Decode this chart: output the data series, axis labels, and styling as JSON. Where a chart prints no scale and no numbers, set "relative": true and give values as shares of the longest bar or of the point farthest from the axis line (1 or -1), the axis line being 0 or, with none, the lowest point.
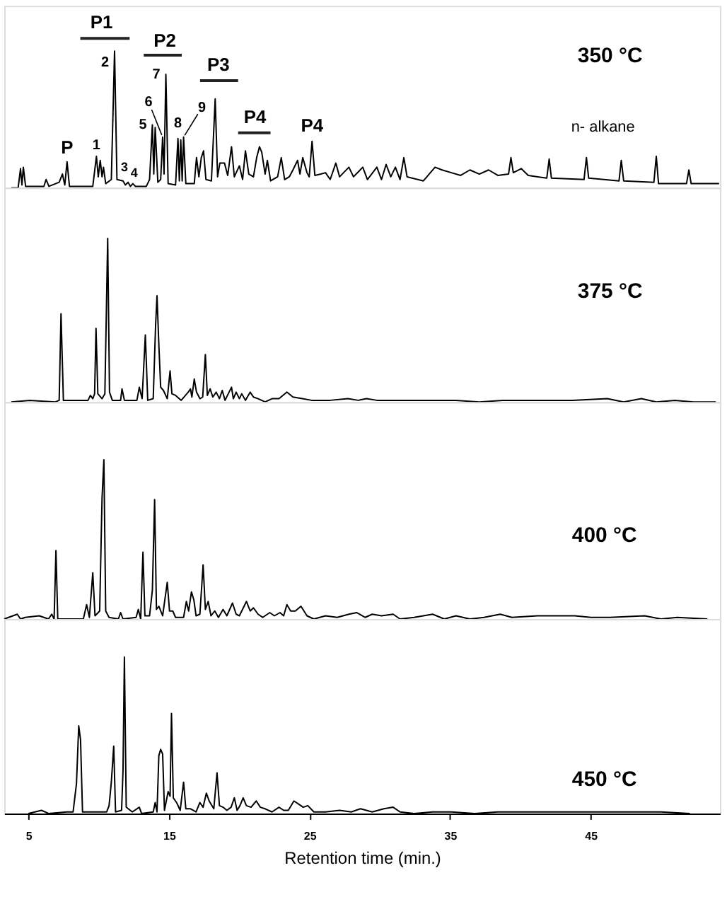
{
  "chart_data": [
    {
      "type": "line",
      "title": "350 °C",
      "relative": true,
      "tick_labels": false,
      "xlim": [
        3.28,
        54.2
      ],
      "x": [
        3.78,
        4.27,
        4.44,
        4.54,
        4.64,
        4.8,
        6.1,
        6.26,
        6.46,
        7.19,
        7.42,
        7.59,
        7.75,
        7.92,
        9.58,
        9.84,
        9.97,
        10.11,
        10.24,
        10.34,
        10.5,
        10.9,
        11.13,
        11.3,
        11.73,
        11.9,
        12.09,
        12.26,
        12.43,
        12.62,
        13.39,
        13.62,
        13.82,
        13.92,
        14.02,
        14.21,
        14.41,
        14.55,
        14.65,
        14.78,
        14.94,
        15.47,
        15.64,
        15.74,
        15.84,
        15.94,
        16.04,
        16.2,
        16.8,
        16.96,
        17.13,
        17.3,
        17.46,
        17.63,
        18.02,
        18.29,
        18.46,
        18.62,
        18.79,
        18.95,
        19.18,
        19.45,
        19.65,
        20.01,
        20.24,
        20.44,
        20.68,
        21.01,
        21.24,
        21.44,
        21.6,
        21.84,
        22.0,
        22.23,
        22.73,
        22.99,
        23.23,
        23.56,
        23.82,
        24.15,
        24.32,
        24.52,
        24.82,
        24.98,
        25.18,
        25.38,
        25.81,
        26.14,
        26.47,
        26.87,
        27.14,
        27.8,
        28.13,
        28.79,
        29.12,
        29.79,
        30.12,
        30.45,
        30.78,
        31.11,
        31.44,
        31.71,
        31.94,
        33.1,
        33.93,
        34.43,
        35.09,
        35.75,
        36.41,
        37.08,
        37.74,
        38.4,
        39.16,
        39.33,
        39.5,
        40.06,
        40.56,
        41.88,
        42.05,
        42.21,
        44.53,
        44.7,
        44.86,
        47.02,
        47.18,
        47.35,
        49.5,
        49.67,
        49.83,
        51.82,
        51.99,
        52.15,
        54.14
      ],
      "series": [
        {
          "color": "#000000",
          "values": [
            0,
            0,
            0.14,
            0.02,
            0.15,
            0.01,
            0.01,
            0.06,
            0.01,
            0.04,
            0.1,
            0.02,
            0.19,
            0.01,
            0.01,
            0.23,
            0.08,
            0.2,
            0.08,
            0.15,
            0.03,
            0.06,
            1.0,
            0.06,
            0.05,
            0.02,
            0.04,
            0.01,
            0.03,
            0.01,
            0.01,
            0.06,
            0.46,
            0.1,
            0.44,
            0.04,
            0.06,
            0.37,
            0.1,
            0.83,
            0.03,
            0.02,
            0.36,
            0.05,
            0.35,
            0.05,
            0.37,
            0.03,
            0.03,
            0.22,
            0.08,
            0.22,
            0.27,
            0.06,
            0.05,
            0.65,
            0.08,
            0.18,
            0.18,
            0.18,
            0.09,
            0.3,
            0.08,
            0.16,
            0.06,
            0.27,
            0.1,
            0.08,
            0.22,
            0.3,
            0.26,
            0.1,
            0.2,
            0.05,
            0.08,
            0.22,
            0.06,
            0.08,
            0.13,
            0.2,
            0.1,
            0.22,
            0.11,
            0.08,
            0.34,
            0.09,
            0.1,
            0.11,
            0.06,
            0.18,
            0.08,
            0.15,
            0.08,
            0.15,
            0.06,
            0.15,
            0.06,
            0.17,
            0.08,
            0.15,
            0.06,
            0.22,
            0.08,
            0.05,
            0.15,
            0.13,
            0.11,
            0.09,
            0.13,
            0.1,
            0.13,
            0.09,
            0.1,
            0.22,
            0.11,
            0.14,
            0.09,
            0.07,
            0.21,
            0.07,
            0.06,
            0.22,
            0.07,
            0.05,
            0.2,
            0.05,
            0.04,
            0.23,
            0.03,
            0.03,
            0.13,
            0.03,
            0.03
          ]
        }
      ],
      "annotations": [
        {
          "text": "P",
          "x": 7.75,
          "y": 0.19
        },
        {
          "text": "1",
          "x": 9.84,
          "y": 0.23
        },
        {
          "text": "2",
          "x": 11.13,
          "y": 1.0
        },
        {
          "text": "3",
          "x": 11.73,
          "y": 0.05
        },
        {
          "text": "4",
          "x": 12.43,
          "y": 0.03
        },
        {
          "text": "5",
          "x": 13.82,
          "y": 0.46
        },
        {
          "text": "6",
          "x": 14.55,
          "y": 0.37
        },
        {
          "text": "7",
          "x": 14.78,
          "y": 0.83
        },
        {
          "text": "8",
          "x": 15.64,
          "y": 0.36
        },
        {
          "text": "9",
          "x": 16.04,
          "y": 0.37
        },
        {
          "text": "P4",
          "x": 25.18,
          "y": 0.34
        },
        "P1",
        "P2",
        "P3",
        "P4",
        "n- alkane"
      ]
    },
    {
      "type": "line",
      "title": "375 °C",
      "relative": true,
      "tick_labels": false,
      "xlim": [
        3.28,
        54.2
      ],
      "x": [
        3.78,
        5.1,
        6.92,
        7.19,
        7.32,
        7.49,
        9.24,
        9.41,
        9.58,
        9.71,
        9.81,
        9.94,
        10.24,
        10.44,
        10.54,
        10.64,
        10.77,
        10.97,
        11.56,
        11.66,
        11.83,
        12.72,
        12.89,
        13.09,
        13.32,
        13.49,
        13.88,
        14.05,
        14.15,
        14.28,
        14.41,
        14.61,
        14.88,
        15.08,
        15.21,
        15.47,
        15.87,
        16.37,
        16.53,
        16.63,
        16.8,
        16.96,
        17.2,
        17.4,
        17.59,
        17.73,
        17.93,
        18.12,
        18.36,
        18.59,
        18.79,
        18.99,
        19.45,
        19.58,
        19.78,
        20.01,
        20.18,
        20.44,
        20.78,
        21.01,
        21.34,
        21.84,
        22.33,
        22.83,
        23.39,
        23.82,
        24.49,
        25.15,
        26.47,
        27.73,
        28.46,
        29.06,
        29.79,
        31.11,
        32.44,
        33.76,
        35.42,
        37.08,
        38.73,
        40.39,
        42.05,
        43.7,
        46.19,
        47.35,
        48.61,
        49.67,
        50.99,
        52.32,
        53.91
      ],
      "series": [
        {
          "color": "#000000",
          "values": [
            0,
            0.01,
            0,
            0.01,
            0.54,
            0.01,
            0.01,
            0.04,
            0.02,
            0.05,
            0.45,
            0.05,
            0.02,
            0.05,
            0.52,
            1.0,
            0.06,
            0.01,
            0.01,
            0.08,
            0.01,
            0.01,
            0.09,
            0.02,
            0.41,
            0.01,
            0.02,
            0.47,
            0.65,
            0.35,
            0.09,
            0.07,
            0.02,
            0.19,
            0.05,
            0.04,
            0.01,
            0.06,
            0.08,
            0.03,
            0.14,
            0.06,
            0.02,
            0.03,
            0.29,
            0.04,
            0.08,
            0.03,
            0.06,
            0.02,
            0.07,
            0.01,
            0.09,
            0.02,
            0.06,
            0.02,
            0.05,
            0.01,
            0.06,
            0.03,
            0.02,
            0,
            0.02,
            0.02,
            0.06,
            0.03,
            0.02,
            0.01,
            0.01,
            0.02,
            0.01,
            0.02,
            0.01,
            0.01,
            0.01,
            0.01,
            0.01,
            0,
            0.01,
            0.01,
            0.01,
            0.01,
            0.02,
            0,
            0.02,
            0,
            0.01,
            0,
            0
          ]
        }
      ]
    },
    {
      "type": "line",
      "title": "400 °C",
      "relative": true,
      "tick_labels": false,
      "xlim": [
        3.28,
        54.2
      ],
      "x": [
        3.28,
        4.21,
        4.44,
        4.77,
        5.77,
        6.43,
        6.66,
        6.83,
        6.96,
        7.09,
        8.91,
        9.14,
        9.34,
        9.58,
        9.74,
        10.07,
        10.24,
        10.37,
        10.5,
        10.74,
        11.4,
        11.56,
        11.73,
        12.66,
        12.82,
        12.99,
        13.15,
        13.29,
        13.62,
        13.82,
        13.98,
        14.11,
        14.28,
        14.55,
        14.88,
        15.04,
        15.27,
        15.47,
        16.04,
        16.24,
        16.4,
        16.6,
        16.77,
        16.93,
        17.2,
        17.43,
        17.59,
        17.79,
        17.99,
        18.26,
        18.52,
        18.85,
        19.12,
        19.52,
        19.78,
        20.01,
        20.51,
        20.78,
        21.01,
        21.34,
        21.67,
        22.17,
        22.5,
        22.9,
        23.16,
        23.39,
        23.66,
        23.99,
        24.39,
        24.82,
        25.31,
        26.14,
        26.97,
        27.8,
        28.36,
        28.96,
        29.46,
        30.12,
        30.95,
        31.44,
        32.44,
        33.76,
        34.59,
        35.42,
        36.41,
        37.41,
        38.57,
        39.4,
        41.22,
        42.54,
        43.87,
        45.03,
        46.36,
        48.84,
        50.0,
        51.16,
        53.31
      ],
      "series": [
        {
          "color": "#000000",
          "values": [
            0,
            0.03,
            0,
            0.01,
            0.02,
            0,
            0.03,
            0,
            0.43,
            0,
            0,
            0.09,
            0.01,
            0.29,
            0.02,
            0.05,
            0.76,
            1.0,
            0.05,
            0.01,
            0,
            0.04,
            0,
            0.01,
            0.06,
            0,
            0.42,
            0.02,
            0.02,
            0.18,
            0.75,
            0.06,
            0.08,
            0.02,
            0.23,
            0.05,
            0.05,
            0.01,
            0.01,
            0.11,
            0.05,
            0.17,
            0.12,
            0.02,
            0.03,
            0.34,
            0.06,
            0.11,
            0.02,
            0.05,
            0.01,
            0.06,
            0.02,
            0.1,
            0.03,
            0.02,
            0.11,
            0.05,
            0.07,
            0.03,
            0.01,
            0.04,
            0.02,
            0.04,
            0.02,
            0.09,
            0.05,
            0.05,
            0.08,
            0.02,
            0,
            0.02,
            0.01,
            0.03,
            0.04,
            0.01,
            0.03,
            0.02,
            0.03,
            0,
            0.01,
            0.03,
            0,
            0.02,
            0,
            0.01,
            0.03,
            0.01,
            0.02,
            0.02,
            0.02,
            0.01,
            0.01,
            0.02,
            0,
            0.01,
            0
          ]
        }
      ]
    },
    {
      "type": "line",
      "title": "450 °C",
      "relative": true,
      "xlim": [
        3.28,
        54.2
      ],
      "xticks": [
        5,
        15,
        25,
        35,
        45
      ],
      "xlabel": "Retention time (min.)",
      "x": [
        5.0,
        5.93,
        6.43,
        7.75,
        8.18,
        8.42,
        8.58,
        8.71,
        8.85,
        10.57,
        10.74,
        10.9,
        11.07,
        11.2,
        11.63,
        11.73,
        11.83,
        11.96,
        12.39,
        12.89,
        13.05,
        13.88,
        14.02,
        14.15,
        14.28,
        14.41,
        14.55,
        14.68,
        14.94,
        15.08,
        15.18,
        15.31,
        15.54,
        15.8,
        16.04,
        16.2,
        16.53,
        16.93,
        17.2,
        17.43,
        17.66,
        17.86,
        18.19,
        18.42,
        18.59,
        18.85,
        19.12,
        19.42,
        19.65,
        19.85,
        20.05,
        20.28,
        20.51,
        20.84,
        21.21,
        21.5,
        21.84,
        22.33,
        22.83,
        23.16,
        23.49,
        23.89,
        24.22,
        24.55,
        24.88,
        25.31,
        26.14,
        27.14,
        27.97,
        28.63,
        29.46,
        30.29,
        30.95,
        31.44,
        32.44,
        33.76,
        35.09,
        36.75,
        38.4,
        40.06,
        41.72,
        43.37,
        45.03,
        46.69,
        48.35,
        50.0,
        52.06
      ],
      "series": [
        {
          "color": "#000000",
          "values": [
            0,
            0.02,
            0,
            0.01,
            0.01,
            0.19,
            0.56,
            0.47,
            0.01,
            0.01,
            0.05,
            0.2,
            0.43,
            0.01,
            0.02,
            0.27,
            1.0,
            0.04,
            0.01,
            0.04,
            0,
            0.01,
            0.07,
            0.01,
            0.37,
            0.41,
            0.38,
            0.02,
            0.14,
            0.11,
            0.64,
            0.1,
            0.07,
            0.02,
            0.2,
            0.03,
            0.03,
            0.01,
            0.07,
            0.04,
            0.13,
            0.08,
            0.03,
            0.26,
            0.05,
            0.04,
            0.02,
            0.04,
            0.1,
            0.02,
            0.05,
            0.1,
            0.05,
            0.04,
            0.08,
            0.04,
            0.03,
            0.01,
            0.04,
            0.02,
            0.02,
            0.08,
            0.06,
            0.04,
            0.05,
            0.01,
            0.01,
            0.02,
            0.01,
            0.03,
            0.01,
            0.03,
            0.04,
            0.01,
            0,
            0.01,
            0.01,
            0,
            0.01,
            0.01,
            0.01,
            0.01,
            0.01,
            0.01,
            0.01,
            0.01,
            0
          ]
        }
      ]
    }
  ]
}
